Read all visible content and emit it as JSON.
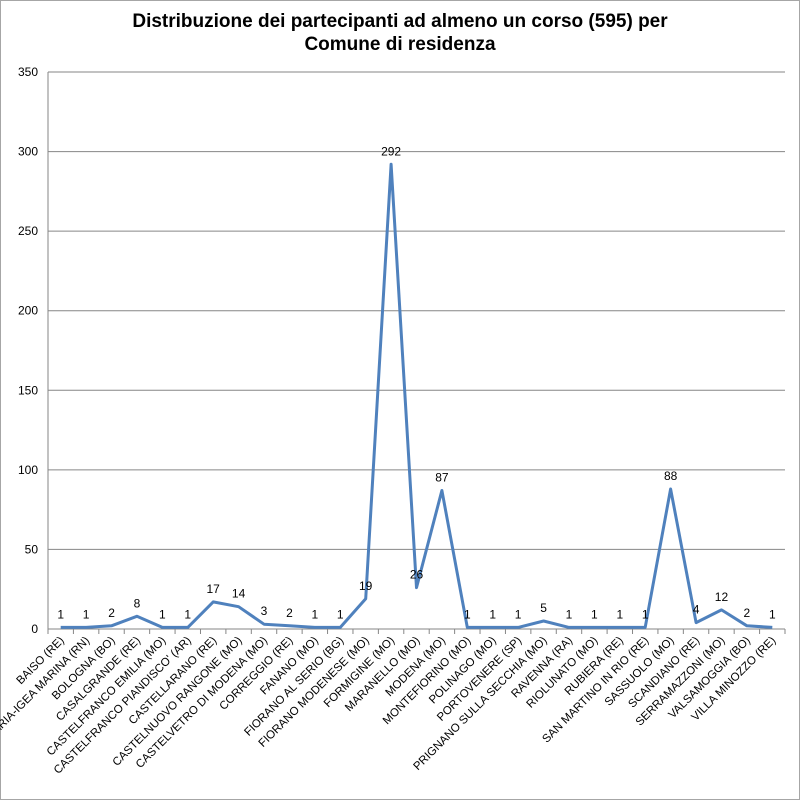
{
  "chart_data": {
    "type": "line",
    "title_line1": "Distribuzione dei partecipanti ad almeno un corso (595) per",
    "title_line2": "Comune di residenza",
    "xlabel": "",
    "ylabel": "",
    "ylim": [
      0,
      350
    ],
    "yticks": [
      0,
      50,
      100,
      150,
      200,
      250,
      300,
      350
    ],
    "grid": true,
    "legend": "none",
    "line_color": "#4f81bd",
    "categories": [
      "BAISO (RE)",
      "BELLARIA-IGEA MARINA (RN)",
      "BOLOGNA (BO)",
      "CASALGRANDE (RE)",
      "CASTELFRANCO EMILIA (MO)",
      "CASTELFRANCO PIANDISCO' (AR)",
      "CASTELLARANO (RE)",
      "CASTELNUOVO RANGONE (MO)",
      "CASTELVETRO DI MODENA (MO)",
      "CORREGGIO (RE)",
      "FANANO (MO)",
      "FIORANO AL SERIO (BG)",
      "FIORANO MODENESE (MO)",
      "FORMIGINE (MO)",
      "MARANELLO (MO)",
      "MODENA (MO)",
      "MONTEFIORINO (MO)",
      "POLINAGO (MO)",
      "PORTOVENERE (SP)",
      "PRIGNANO SULLA SECCHIA (MO)",
      "RAVENNA (RA)",
      "RIOLUNATO (MO)",
      "RUBIERA (RE)",
      "SAN MARTINO IN RIO (RE)",
      "SASSUOLO (MO)",
      "SCANDIANO (RE)",
      "SERRAMAZZONI (MO)",
      "VALSAMOGGIA (BO)",
      "VILLA MINOZZO (RE)"
    ],
    "values": [
      1,
      1,
      2,
      8,
      1,
      1,
      17,
      14,
      3,
      2,
      1,
      1,
      19,
      292,
      26,
      87,
      1,
      1,
      1,
      5,
      1,
      1,
      1,
      1,
      88,
      4,
      12,
      2,
      1
    ]
  }
}
